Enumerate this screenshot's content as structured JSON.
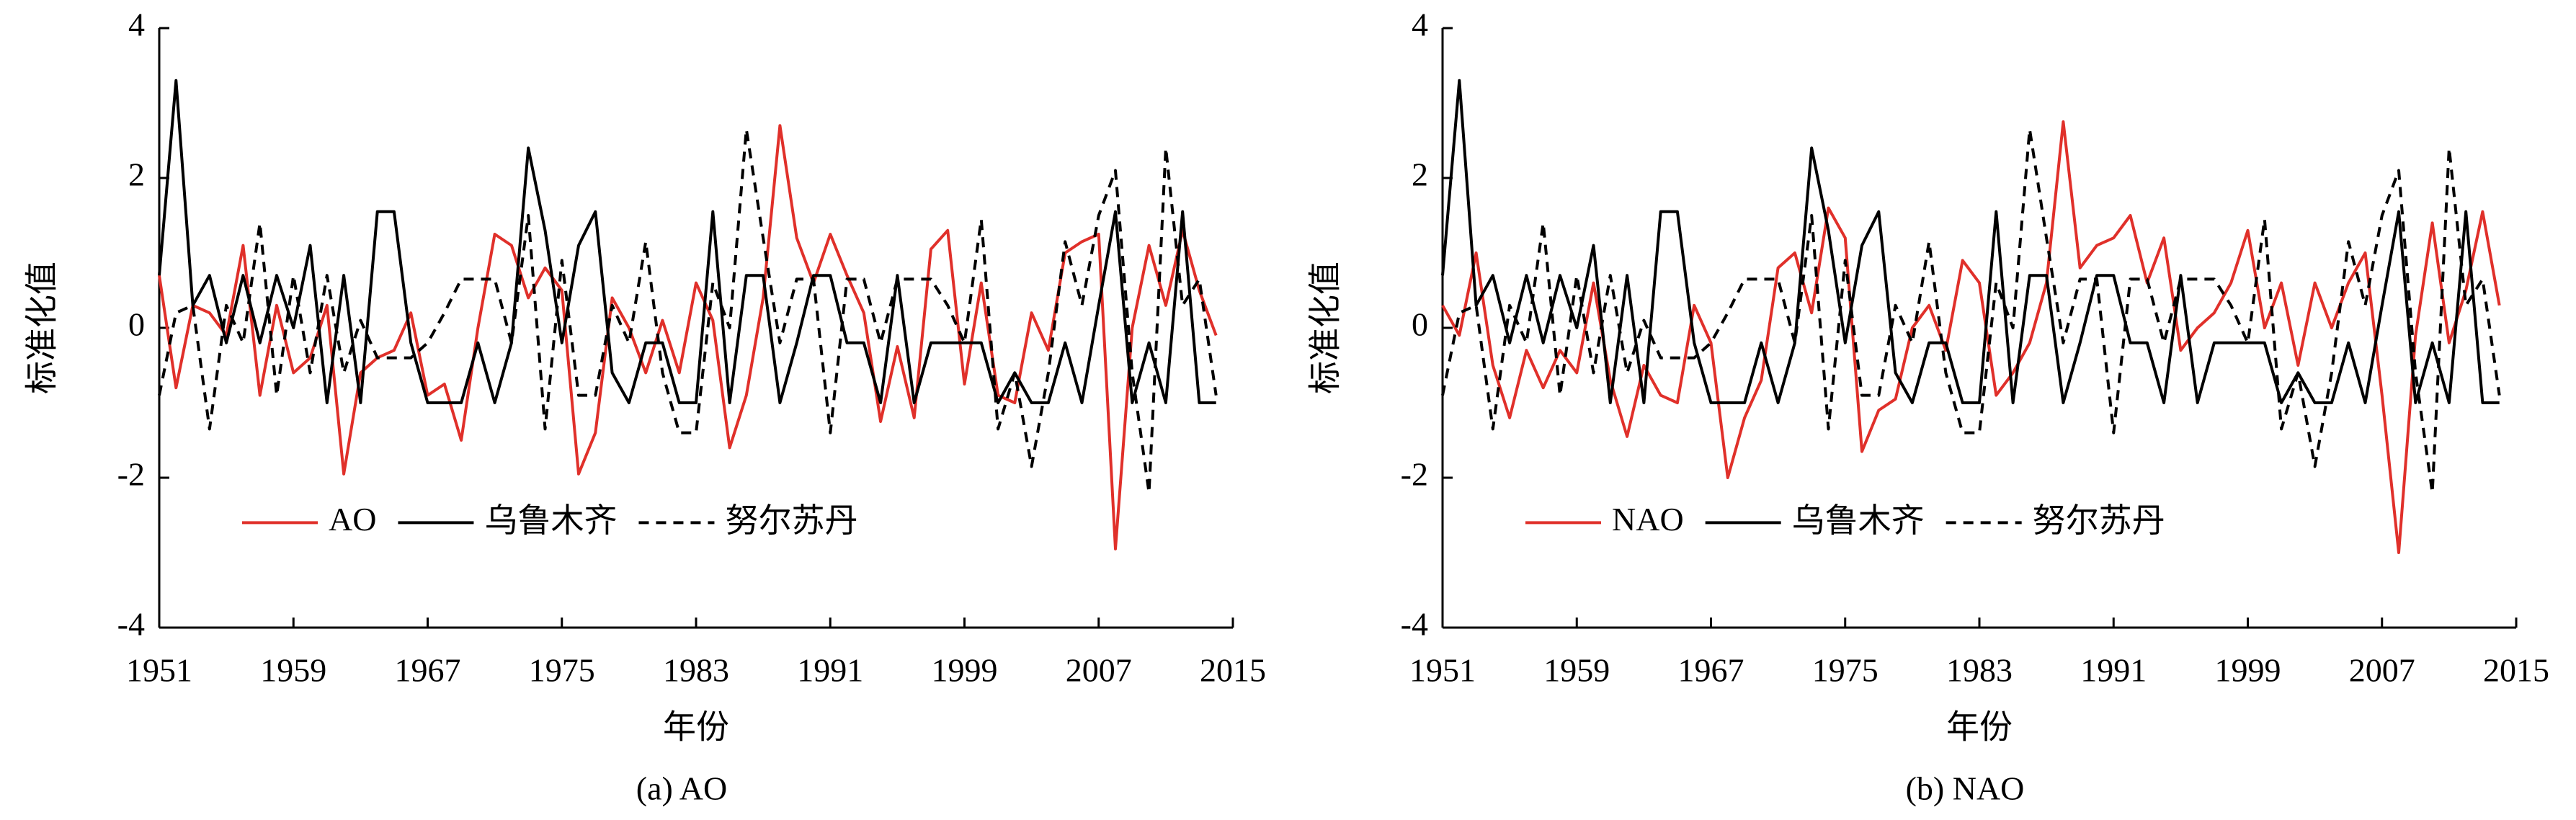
{
  "chart_data": [
    {
      "type": "line",
      "caption": "(a) AO",
      "xlabel": "年份",
      "ylabel": "标准化值",
      "x": [
        1951,
        1952,
        1953,
        1954,
        1955,
        1956,
        1957,
        1958,
        1959,
        1960,
        1961,
        1962,
        1963,
        1964,
        1965,
        1966,
        1967,
        1968,
        1969,
        1970,
        1971,
        1972,
        1973,
        1974,
        1975,
        1976,
        1977,
        1978,
        1979,
        1980,
        1981,
        1982,
        1983,
        1984,
        1985,
        1986,
        1987,
        1988,
        1989,
        1990,
        1991,
        1992,
        1993,
        1994,
        1995,
        1996,
        1997,
        1998,
        1999,
        2000,
        2001,
        2002,
        2003,
        2004,
        2005,
        2006,
        2007,
        2008,
        2009,
        2010,
        2011,
        2012,
        2013,
        2014
      ],
      "xlim": [
        1951,
        2015
      ],
      "xticks": [
        1951,
        1959,
        1967,
        1975,
        1983,
        1991,
        1999,
        2007,
        2015
      ],
      "ylim": [
        -4,
        4
      ],
      "yticks": [
        -4,
        -2,
        0,
        2,
        4
      ],
      "legend": "lower center",
      "series": [
        {
          "name": "AO",
          "color": "#e0302a",
          "linestyle": "solid",
          "values": [
            0.7,
            -0.8,
            0.3,
            0.2,
            -0.1,
            1.1,
            -0.9,
            0.3,
            -0.6,
            -0.4,
            0.3,
            -1.95,
            -0.6,
            -0.4,
            -0.3,
            0.2,
            -0.9,
            -0.75,
            -1.5,
            0.0,
            1.25,
            1.1,
            0.4,
            0.8,
            0.5,
            -1.95,
            -1.4,
            0.4,
            0.0,
            -0.6,
            0.1,
            -0.6,
            0.6,
            0.1,
            -1.6,
            -0.9,
            0.4,
            2.7,
            1.2,
            0.6,
            1.25,
            0.7,
            0.2,
            -1.25,
            -0.25,
            -1.2,
            1.05,
            1.3,
            -0.75,
            0.6,
            -0.9,
            -1.0,
            0.2,
            -0.3,
            1.0,
            1.15,
            1.25,
            -2.95,
            0.0,
            1.1,
            0.3,
            1.3,
            0.5,
            -0.1
          ]
        },
        {
          "name": "乌鲁木齐",
          "color": "#000000",
          "linestyle": "solid",
          "values": [
            0.7,
            3.3,
            0.3,
            0.7,
            -0.2,
            0.7,
            -0.2,
            0.7,
            0.0,
            1.1,
            -1.0,
            0.7,
            -1.0,
            1.55,
            1.55,
            -0.2,
            -1.0,
            -1.0,
            -1.0,
            -0.2,
            -1.0,
            -0.2,
            2.4,
            1.3,
            -0.2,
            1.1,
            1.55,
            -0.6,
            -1.0,
            -0.2,
            -0.2,
            -1.0,
            -1.0,
            1.55,
            -1.0,
            0.7,
            0.7,
            -1.0,
            -0.2,
            0.7,
            0.7,
            -0.2,
            -0.2,
            -1.0,
            0.7,
            -1.0,
            -0.2,
            -0.2,
            -0.2,
            -0.2,
            -1.0,
            -0.6,
            -1.0,
            -1.0,
            -0.2,
            -1.0,
            0.3,
            1.55,
            -1.0,
            -0.2,
            -1.0,
            1.55,
            -1.0,
            -1.0
          ]
        },
        {
          "name": "努尔苏丹",
          "color": "#000000",
          "linestyle": "dashed",
          "values": [
            -0.9,
            0.2,
            0.3,
            -1.35,
            0.3,
            -0.2,
            1.4,
            -0.9,
            0.7,
            -0.6,
            0.7,
            -0.6,
            0.1,
            -0.4,
            -0.4,
            -0.4,
            -0.2,
            0.2,
            0.65,
            0.65,
            0.65,
            -0.2,
            1.5,
            -1.35,
            0.9,
            -0.9,
            -0.9,
            0.3,
            -0.2,
            1.15,
            -0.6,
            -1.4,
            -1.4,
            0.6,
            0.0,
            2.65,
            1.2,
            -0.2,
            0.65,
            0.65,
            -1.4,
            0.65,
            0.65,
            -0.2,
            0.65,
            0.65,
            0.65,
            0.3,
            -0.2,
            1.45,
            -1.35,
            -0.6,
            -1.85,
            -0.6,
            1.15,
            0.3,
            1.5,
            2.1,
            -0.6,
            -2.2,
            2.4,
            0.3,
            0.65,
            -0.9
          ]
        }
      ]
    },
    {
      "type": "line",
      "caption": "(b) NAO",
      "xlabel": "年份",
      "ylabel": "标准化值",
      "x": [
        1951,
        1952,
        1953,
        1954,
        1955,
        1956,
        1957,
        1958,
        1959,
        1960,
        1961,
        1962,
        1963,
        1964,
        1965,
        1966,
        1967,
        1968,
        1969,
        1970,
        1971,
        1972,
        1973,
        1974,
        1975,
        1976,
        1977,
        1978,
        1979,
        1980,
        1981,
        1982,
        1983,
        1984,
        1985,
        1986,
        1987,
        1988,
        1989,
        1990,
        1991,
        1992,
        1993,
        1994,
        1995,
        1996,
        1997,
        1998,
        1999,
        2000,
        2001,
        2002,
        2003,
        2004,
        2005,
        2006,
        2007,
        2008,
        2009,
        2010,
        2011,
        2012,
        2013,
        2014
      ],
      "xlim": [
        1951,
        2015
      ],
      "xticks": [
        1951,
        1959,
        1967,
        1975,
        1983,
        1991,
        1999,
        2007,
        2015
      ],
      "ylim": [
        -4,
        4
      ],
      "yticks": [
        -4,
        -2,
        0,
        2,
        4
      ],
      "legend": "lower center",
      "series": [
        {
          "name": "NAO",
          "color": "#e0302a",
          "linestyle": "solid",
          "values": [
            0.3,
            -0.1,
            1.0,
            -0.5,
            -1.2,
            -0.3,
            -0.8,
            -0.3,
            -0.6,
            0.6,
            -0.7,
            -1.45,
            -0.5,
            -0.9,
            -1.0,
            0.3,
            -0.2,
            -2.0,
            -1.2,
            -0.7,
            0.8,
            1.0,
            0.2,
            1.6,
            1.2,
            -1.65,
            -1.1,
            -0.95,
            0.0,
            0.3,
            -0.3,
            0.9,
            0.6,
            -0.9,
            -0.6,
            -0.2,
            0.6,
            2.75,
            0.8,
            1.1,
            1.2,
            1.5,
            0.6,
            1.2,
            -0.3,
            0.0,
            0.2,
            0.6,
            1.3,
            0.0,
            0.6,
            -0.5,
            0.6,
            0.0,
            0.6,
            1.0,
            -0.9,
            -3.0,
            -0.1,
            1.4,
            -0.2,
            0.5,
            1.55,
            0.3
          ]
        },
        {
          "name": "乌鲁木齐",
          "color": "#000000",
          "linestyle": "solid",
          "values": [
            0.7,
            3.3,
            0.3,
            0.7,
            -0.2,
            0.7,
            -0.2,
            0.7,
            0.0,
            1.1,
            -1.0,
            0.7,
            -1.0,
            1.55,
            1.55,
            -0.2,
            -1.0,
            -1.0,
            -1.0,
            -0.2,
            -1.0,
            -0.2,
            2.4,
            1.3,
            -0.2,
            1.1,
            1.55,
            -0.6,
            -1.0,
            -0.2,
            -0.2,
            -1.0,
            -1.0,
            1.55,
            -1.0,
            0.7,
            0.7,
            -1.0,
            -0.2,
            0.7,
            0.7,
            -0.2,
            -0.2,
            -1.0,
            0.7,
            -1.0,
            -0.2,
            -0.2,
            -0.2,
            -0.2,
            -1.0,
            -0.6,
            -1.0,
            -1.0,
            -0.2,
            -1.0,
            0.3,
            1.55,
            -1.0,
            -0.2,
            -1.0,
            1.55,
            -1.0,
            -1.0
          ]
        },
        {
          "name": "努尔苏丹",
          "color": "#000000",
          "linestyle": "dashed",
          "values": [
            -0.9,
            0.2,
            0.3,
            -1.35,
            0.3,
            -0.2,
            1.4,
            -0.9,
            0.7,
            -0.6,
            0.7,
            -0.6,
            0.1,
            -0.4,
            -0.4,
            -0.4,
            -0.2,
            0.2,
            0.65,
            0.65,
            0.65,
            -0.2,
            1.5,
            -1.35,
            0.9,
            -0.9,
            -0.9,
            0.3,
            -0.2,
            1.15,
            -0.6,
            -1.4,
            -1.4,
            0.6,
            0.0,
            2.65,
            1.2,
            -0.2,
            0.65,
            0.65,
            -1.4,
            0.65,
            0.65,
            -0.2,
            0.65,
            0.65,
            0.65,
            0.3,
            -0.2,
            1.45,
            -1.35,
            -0.6,
            -1.85,
            -0.6,
            1.15,
            0.3,
            1.5,
            2.1,
            -0.6,
            -2.2,
            2.4,
            0.3,
            0.65,
            -0.9
          ]
        }
      ]
    }
  ]
}
